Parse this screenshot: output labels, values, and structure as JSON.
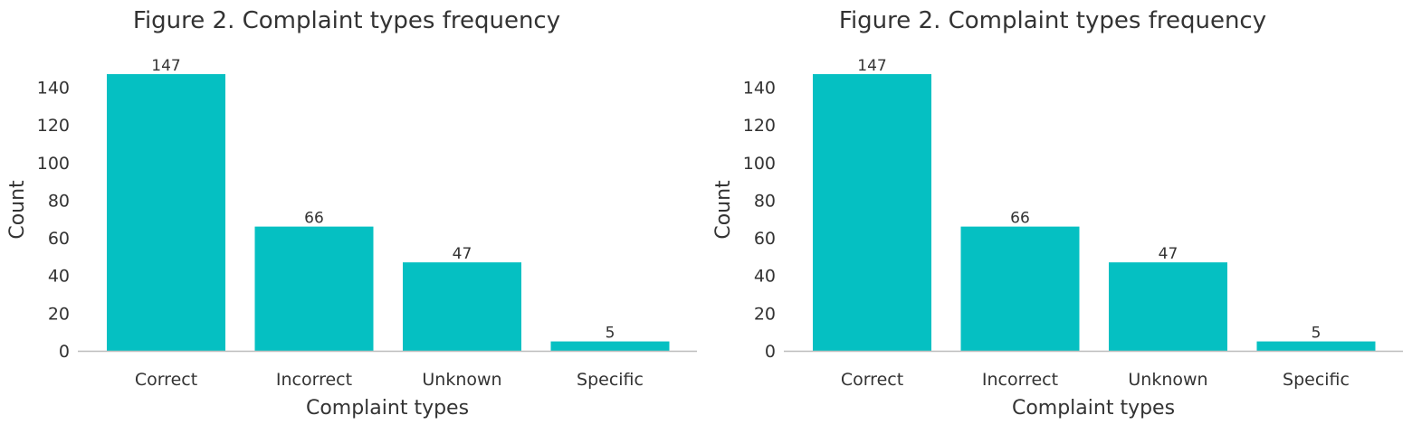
{
  "colors": {
    "bar": "#05c0c2",
    "axis_line": "#bdbdbd",
    "text": "#333333"
  },
  "chart_data": [
    {
      "type": "bar",
      "title": "Figure 2. Complaint types frequency",
      "xlabel": "Complaint types",
      "ylabel": "Count",
      "categories": [
        "Correct",
        "Incorrect",
        "Unknown",
        "Specific"
      ],
      "values": [
        147,
        66,
        47,
        5
      ],
      "value_labels": [
        "147",
        "66",
        "47",
        "5"
      ],
      "yticks": [
        0,
        20,
        40,
        60,
        80,
        100,
        120,
        140
      ],
      "ytick_labels": [
        "0",
        "20",
        "40",
        "60",
        "80",
        "100",
        "120",
        "140"
      ],
      "ylim": [
        0,
        147
      ],
      "grid": false,
      "legend": "none"
    },
    {
      "type": "bar",
      "title": "Figure 2. Complaint types frequency",
      "xlabel": "Complaint types",
      "ylabel": "Count",
      "categories": [
        "Correct",
        "Incorrect",
        "Unknown",
        "Specific"
      ],
      "values": [
        147,
        66,
        47,
        5
      ],
      "value_labels": [
        "147",
        "66",
        "47",
        "5"
      ],
      "yticks": [
        0,
        20,
        40,
        60,
        80,
        100,
        120,
        140
      ],
      "ytick_labels": [
        "0",
        "20",
        "40",
        "60",
        "80",
        "100",
        "120",
        "140"
      ],
      "ylim": [
        0,
        147
      ],
      "grid": false,
      "legend": "none"
    }
  ]
}
